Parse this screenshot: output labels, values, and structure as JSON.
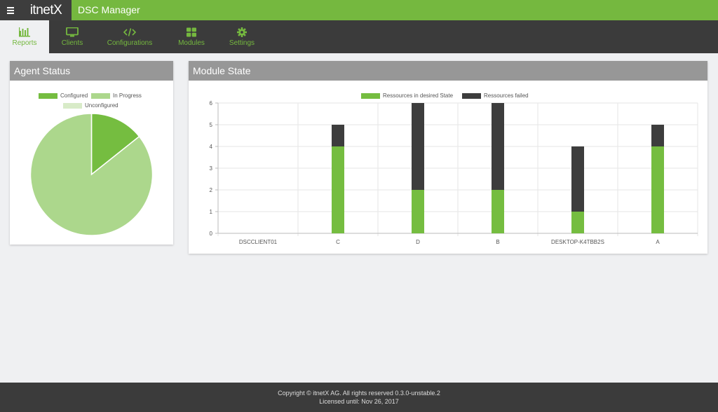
{
  "header": {
    "brand": "itnetX",
    "title": "DSC Manager",
    "accent_color": "#75b83f",
    "dark_color": "#3d3d3d"
  },
  "nav": {
    "items": [
      {
        "label": "Reports",
        "icon": "bar-chart-icon",
        "active": true
      },
      {
        "label": "Clients",
        "icon": "monitor-icon",
        "active": false
      },
      {
        "label": "Configurations",
        "icon": "code-icon",
        "active": false
      },
      {
        "label": "Modules",
        "icon": "grid-icon",
        "active": false
      },
      {
        "label": "Settings",
        "icon": "gear-icon",
        "active": false
      }
    ]
  },
  "agent_status": {
    "title": "Agent Status",
    "legend": {
      "configured": "Configured",
      "in_progress": "In Progress",
      "unconfigured": "Unconfigured"
    }
  },
  "module_state": {
    "title": "Module State",
    "legend": {
      "desired": "Ressources in desired State",
      "failed": "Ressources failed"
    }
  },
  "chart_data": [
    {
      "type": "pie",
      "title": "Agent Status",
      "labels": [
        "Configured",
        "In Progress",
        "Unconfigured"
      ],
      "values": [
        1,
        6,
        0
      ],
      "colors": [
        "#75bd40",
        "#acd78c",
        "#d8ebc8"
      ],
      "legend_position": "top"
    },
    {
      "type": "bar",
      "stacked": true,
      "title": "Module State",
      "categories": [
        "DSCCLIENT01",
        "C",
        "D",
        "B",
        "DESKTOP-K4TBB2S",
        "A"
      ],
      "series": [
        {
          "name": "Ressources in desired State",
          "values": [
            0,
            4,
            2,
            2,
            1,
            4
          ],
          "color": "#75bd40"
        },
        {
          "name": "Ressources failed",
          "values": [
            0,
            1,
            4,
            4,
            3,
            1
          ],
          "color": "#3d3d3d"
        }
      ],
      "ylim": [
        0,
        6
      ],
      "yticks": [
        "0",
        "1",
        "2",
        "3",
        "4",
        "5",
        "6"
      ],
      "grid": true,
      "legend_position": "top"
    }
  ],
  "footer": {
    "copyright": "Copyright © itnetX AG. All rights reserved 0.3.0-unstable.2",
    "license": "Licensed until: Nov 26, 2017"
  }
}
